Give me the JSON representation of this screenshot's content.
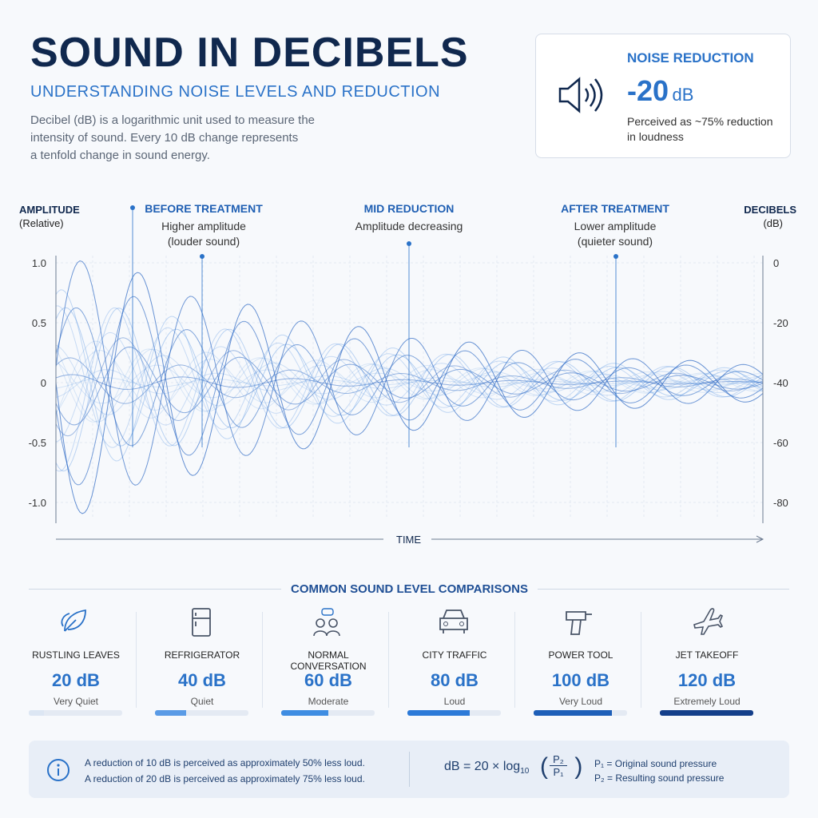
{
  "header": {
    "title": "SOUND IN DECIBELS",
    "subtitle": "UNDERSTANDING NOISE LEVELS AND REDUCTION",
    "description": [
      "Decibel (dB) is a logarithmic unit used to measure the",
      "intensity of sound. Every 10 dB change represents",
      "a tenfold change in sound energy."
    ]
  },
  "callout": {
    "label": "NOISE REDUCTION",
    "value": "-20",
    "unit": "dB",
    "note": [
      "Perceived as ~75% reduction",
      "in loudness"
    ]
  },
  "waveform": {
    "left_axis_title": [
      "AMPLITUDE",
      "(Relative)"
    ],
    "right_axis_title": [
      "DECIBELS",
      "(dB)"
    ],
    "left_ticks": [
      "1.0",
      "0.5",
      "0",
      "-0.5",
      "-1.0"
    ],
    "right_ticks": [
      "0",
      "-20",
      "-40",
      "-60",
      "-80"
    ],
    "x_axis_title": "TIME",
    "annotations": [
      {
        "title": "BEFORE TREATMENT",
        "lines": [
          "Higher amplitude",
          "(louder sound)"
        ]
      },
      {
        "title": "MID REDUCTION",
        "lines": [
          "Amplitude decreasing"
        ]
      },
      {
        "title": "AFTER TREATMENT",
        "lines": [
          "Lower amplitude",
          "(quieter sound)"
        ]
      }
    ]
  },
  "comparisons": {
    "heading": "COMMON SOUND LEVEL COMPARISONS",
    "items": [
      {
        "name": "RUSTLING LEAVES",
        "level": "20 dB",
        "description": "Very Quiet"
      },
      {
        "name": "REFRIGERATOR",
        "level": "40 dB",
        "description": "Quiet"
      },
      {
        "name": "NORMAL CONVERSATION",
        "level": "60 dB",
        "description": "Moderate"
      },
      {
        "name": "CITY TRAFFIC",
        "level": "80 dB",
        "description": "Loud"
      },
      {
        "name": "POWER TOOL",
        "level": "100 dB",
        "description": "Very Loud"
      },
      {
        "name": "JET TAKEOFF",
        "level": "120 dB",
        "description": "Extremely Loud"
      }
    ]
  },
  "footer": {
    "notes": [
      "A reduction of 10 dB is perceived as approximately 50% less loud.",
      "A reduction of 20 dB is perceived as approximately 75% less loud."
    ],
    "formula": {
      "lhs": "dB = 20 × log",
      "base": "10",
      "numerator": "P₂",
      "denominator": "P₁"
    },
    "legend": [
      "P₁ = Original sound pressure",
      "P₂ = Resulting sound pressure"
    ]
  }
}
